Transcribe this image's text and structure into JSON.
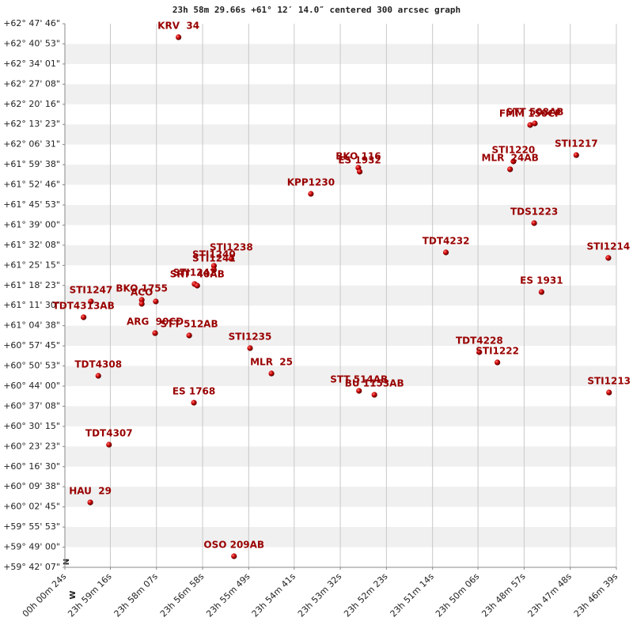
{
  "chart_data": {
    "type": "scatter",
    "title": "23h 58m 29.66s +61° 12′ 14.0″ centered 300 arcsec graph",
    "xlabel": "W",
    "ylabel": "N",
    "color": "#cc0000",
    "label_color": "#990000",
    "grid": true,
    "xlim": [
      86424,
      85599
    ],
    "ylim": [
      214927,
      226066
    ],
    "xticks": [
      {
        "value": 86424,
        "label": "00h 00m 24s"
      },
      {
        "value": 86356,
        "label": "23h 59m 16s"
      },
      {
        "value": 86287,
        "label": "23h 58m 07s"
      },
      {
        "value": 86218,
        "label": "23h 56m 58s"
      },
      {
        "value": 86149,
        "label": "23h 55m 49s"
      },
      {
        "value": 86081,
        "label": "23h 54m 41s"
      },
      {
        "value": 86012,
        "label": "23h 53m 32s"
      },
      {
        "value": 85943,
        "label": "23h 52m 23s"
      },
      {
        "value": 85874,
        "label": "23h 51m 14s"
      },
      {
        "value": 85806,
        "label": "23h 50m 06s"
      },
      {
        "value": 85737,
        "label": "23h 48m 57s"
      },
      {
        "value": 85668,
        "label": "23h 47m 48s"
      },
      {
        "value": 85599,
        "label": "23h 46m 39s"
      }
    ],
    "yticks": [
      {
        "value": 226066,
        "label": "+62° 47' 46\""
      },
      {
        "value": 225653,
        "label": "+62° 40' 53\""
      },
      {
        "value": 225241,
        "label": "+62° 34' 01\""
      },
      {
        "value": 224828,
        "label": "+62° 27' 08\""
      },
      {
        "value": 224416,
        "label": "+62° 20' 16\""
      },
      {
        "value": 224003,
        "label": "+62° 13' 23\""
      },
      {
        "value": 223591,
        "label": "+62° 06' 31\""
      },
      {
        "value": 223178,
        "label": "+61° 59' 38\""
      },
      {
        "value": 222766,
        "label": "+61° 52' 46\""
      },
      {
        "value": 222353,
        "label": "+61° 45' 53\""
      },
      {
        "value": 221940,
        "label": "+61° 39' 00\""
      },
      {
        "value": 221528,
        "label": "+61° 32' 08\""
      },
      {
        "value": 221115,
        "label": "+61° 25' 15\""
      },
      {
        "value": 220703,
        "label": "+61° 18' 23\""
      },
      {
        "value": 220290,
        "label": "+61° 11' 30\""
      },
      {
        "value": 219878,
        "label": "+61° 04' 38\""
      },
      {
        "value": 219465,
        "label": "+60° 57' 45\""
      },
      {
        "value": 219053,
        "label": "+60° 50' 53\""
      },
      {
        "value": 218640,
        "label": "+60° 44' 00\""
      },
      {
        "value": 218228,
        "label": "+60° 37' 08\""
      },
      {
        "value": 217815,
        "label": "+60° 30' 15\""
      },
      {
        "value": 217403,
        "label": "+60° 23' 23\""
      },
      {
        "value": 216990,
        "label": "+60° 16' 30\""
      },
      {
        "value": 216578,
        "label": "+60° 09' 38\""
      },
      {
        "value": 216165,
        "label": "+60° 02' 45\""
      },
      {
        "value": 215753,
        "label": "+59° 55' 53\""
      },
      {
        "value": 215340,
        "label": "+59° 49' 00\""
      },
      {
        "value": 214927,
        "label": "+59° 42' 07\""
      }
    ],
    "labels": [
      "KRV  34",
      "FMM 150CF",
      "STT 508AB",
      "STI1220",
      "MLR  24AB",
      "STI1217",
      "BKO 116",
      "ES 1932",
      "KPP1230",
      "TDS1223",
      "TDT4232",
      "STI1214",
      "STI1238",
      "STI1240",
      "STI1241",
      "STI1242",
      "SRT  40AB",
      "ES 1931",
      "STI1247",
      "TDT4313AB",
      "BKO 1755",
      "ACO",
      null,
      "ARG  90CD",
      "STT 512AB",
      "STI1235",
      "TDT4228",
      "STI1222",
      "MLR  25",
      "TDT4308",
      "STT 514AB",
      "BU 1153AB",
      "STI1213",
      "ES 1768",
      "TDT4307",
      "HAU  29",
      "OSO 209AB"
    ],
    "x": [
      86254,
      85728,
      85721,
      85753,
      85758,
      85659,
      85985,
      85983,
      86056,
      85722,
      85854,
      85611,
      86175,
      86201,
      86201,
      86230,
      86226,
      85711,
      86385,
      86396,
      86309,
      86309,
      86288,
      86289,
      86238,
      86147,
      85804,
      85777,
      86115,
      86374,
      85984,
      85961,
      85610,
      86231,
      86358,
      86386,
      86171
    ],
    "y": [
      225790,
      223991,
      224023,
      223245,
      223083,
      223374,
      223115,
      223034,
      222580,
      221980,
      221380,
      221267,
      221250,
      221105,
      221023,
      220732,
      220699,
      220569,
      220375,
      220051,
      220407,
      220326,
      220375,
      219726,
      219678,
      219418,
      219337,
      219126,
      218899,
      218851,
      218543,
      218462,
      218510,
      218300,
      217440,
      216257,
      215154
    ]
  }
}
